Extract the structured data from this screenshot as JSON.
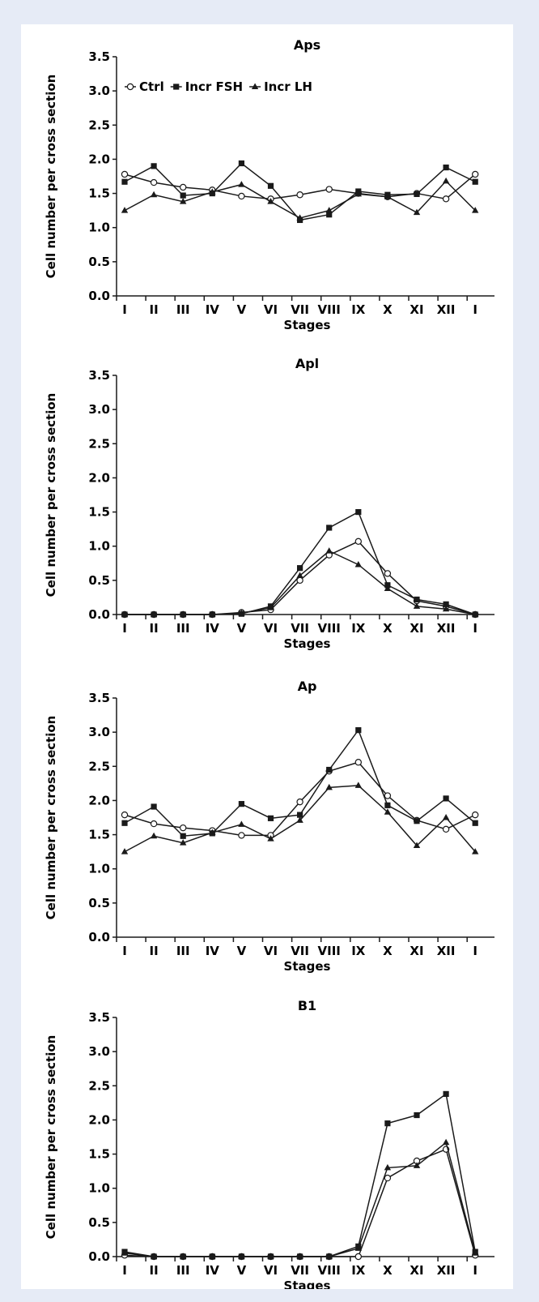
{
  "figure": {
    "background": "#e6ebf6",
    "panel_color": "#ffffff",
    "line_color": "#1a1a1a"
  },
  "chart_data": [
    {
      "type": "line",
      "title": "Aps",
      "xlabel": "Stages",
      "ylabel": "Cell number per cross section",
      "categories": [
        "I",
        "II",
        "III",
        "IV",
        "V",
        "VI",
        "VII",
        "VIII",
        "IX",
        "X",
        "XI",
        "XII",
        "I"
      ],
      "ylim": [
        0,
        3.5
      ],
      "yticks": [
        "0.0",
        "0.5",
        "1.0",
        "1.5",
        "2.0",
        "2.5",
        "3.0",
        "3.5"
      ],
      "legend": {
        "show": true,
        "position": "top-left"
      },
      "series": [
        {
          "name": "Ctrl",
          "marker": "open-circle",
          "values": [
            1.78,
            1.66,
            1.59,
            1.55,
            1.46,
            1.42,
            1.48,
            1.56,
            1.5,
            1.45,
            1.5,
            1.42,
            1.78
          ]
        },
        {
          "name": "Incr FSH",
          "marker": "filled-square",
          "values": [
            1.67,
            1.9,
            1.47,
            1.5,
            1.94,
            1.61,
            1.11,
            1.19,
            1.53,
            1.48,
            1.49,
            1.88,
            1.67
          ]
        },
        {
          "name": "Incr LH",
          "marker": "filled-triangle",
          "values": [
            1.25,
            1.48,
            1.38,
            1.52,
            1.63,
            1.38,
            1.14,
            1.25,
            1.49,
            1.45,
            1.22,
            1.68,
            1.25
          ]
        }
      ]
    },
    {
      "type": "line",
      "title": "Apl",
      "xlabel": "Stages",
      "ylabel": "Cell number per cross section",
      "categories": [
        "I",
        "II",
        "III",
        "IV",
        "V",
        "VI",
        "VII",
        "VIII",
        "IX",
        "X",
        "XI",
        "XII",
        "I"
      ],
      "ylim": [
        0,
        3.5
      ],
      "yticks": [
        "0.0",
        "0.5",
        "1.0",
        "1.5",
        "2.0",
        "2.5",
        "3.0",
        "3.5"
      ],
      "legend": {
        "show": false
      },
      "series": [
        {
          "name": "Ctrl",
          "marker": "open-circle",
          "values": [
            0,
            0,
            0,
            0,
            0.03,
            0.07,
            0.5,
            0.87,
            1.07,
            0.6,
            0.2,
            0.12,
            0
          ]
        },
        {
          "name": "Incr FSH",
          "marker": "filled-square",
          "values": [
            0,
            0,
            0,
            0,
            0.01,
            0.12,
            0.68,
            1.27,
            1.5,
            0.43,
            0.22,
            0.15,
            0
          ]
        },
        {
          "name": "Incr LH",
          "marker": "filled-triangle",
          "values": [
            0,
            0,
            0,
            0,
            0.02,
            0.1,
            0.57,
            0.93,
            0.73,
            0.38,
            0.12,
            0.08,
            0
          ]
        }
      ]
    },
    {
      "type": "line",
      "title": "Ap",
      "xlabel": "Stages",
      "ylabel": "Cell number per cross section",
      "categories": [
        "I",
        "II",
        "III",
        "IV",
        "V",
        "VI",
        "VII",
        "VIII",
        "IX",
        "X",
        "XI",
        "XII",
        "I"
      ],
      "ylim": [
        0,
        3.5
      ],
      "yticks": [
        "0.0",
        "0.5",
        "1.0",
        "1.5",
        "2.0",
        "2.5",
        "3.0",
        "3.5"
      ],
      "legend": {
        "show": false
      },
      "series": [
        {
          "name": "Ctrl",
          "marker": "open-circle",
          "values": [
            1.79,
            1.66,
            1.6,
            1.56,
            1.49,
            1.49,
            1.98,
            2.43,
            2.56,
            2.07,
            1.71,
            1.58,
            1.79
          ]
        },
        {
          "name": "Incr FSH",
          "marker": "filled-square",
          "values": [
            1.67,
            1.91,
            1.48,
            1.52,
            1.95,
            1.74,
            1.79,
            2.45,
            3.03,
            1.93,
            1.7,
            2.03,
            1.67
          ]
        },
        {
          "name": "Incr LH",
          "marker": "filled-triangle",
          "values": [
            1.25,
            1.48,
            1.38,
            1.53,
            1.65,
            1.44,
            1.71,
            2.19,
            2.22,
            1.83,
            1.34,
            1.75,
            1.25
          ]
        }
      ]
    },
    {
      "type": "line",
      "title": "B1",
      "xlabel": "Stages",
      "ylabel": "Cell number per cross section",
      "categories": [
        "I",
        "II",
        "III",
        "IV",
        "V",
        "VI",
        "VII",
        "VIII",
        "IX",
        "X",
        "XI",
        "XII",
        "I"
      ],
      "ylim": [
        0,
        3.5
      ],
      "yticks": [
        "0.0",
        "0.5",
        "1.0",
        "1.5",
        "2.0",
        "2.5",
        "3.0",
        "3.5"
      ],
      "legend": {
        "show": false
      },
      "series": [
        {
          "name": "Ctrl",
          "marker": "open-circle",
          "values": [
            0.02,
            0,
            0,
            0,
            0,
            0,
            0,
            0,
            0,
            1.15,
            1.4,
            1.57,
            0.02
          ]
        },
        {
          "name": "Incr FSH",
          "marker": "filled-square",
          "values": [
            0.07,
            0,
            0,
            0,
            0,
            0,
            0,
            0,
            0.15,
            1.95,
            2.07,
            2.38,
            0.07
          ]
        },
        {
          "name": "Incr LH",
          "marker": "filled-triangle",
          "values": [
            0.05,
            0,
            0,
            0,
            0,
            0,
            0,
            0,
            0.12,
            1.3,
            1.33,
            1.67,
            0.05
          ]
        }
      ]
    }
  ]
}
